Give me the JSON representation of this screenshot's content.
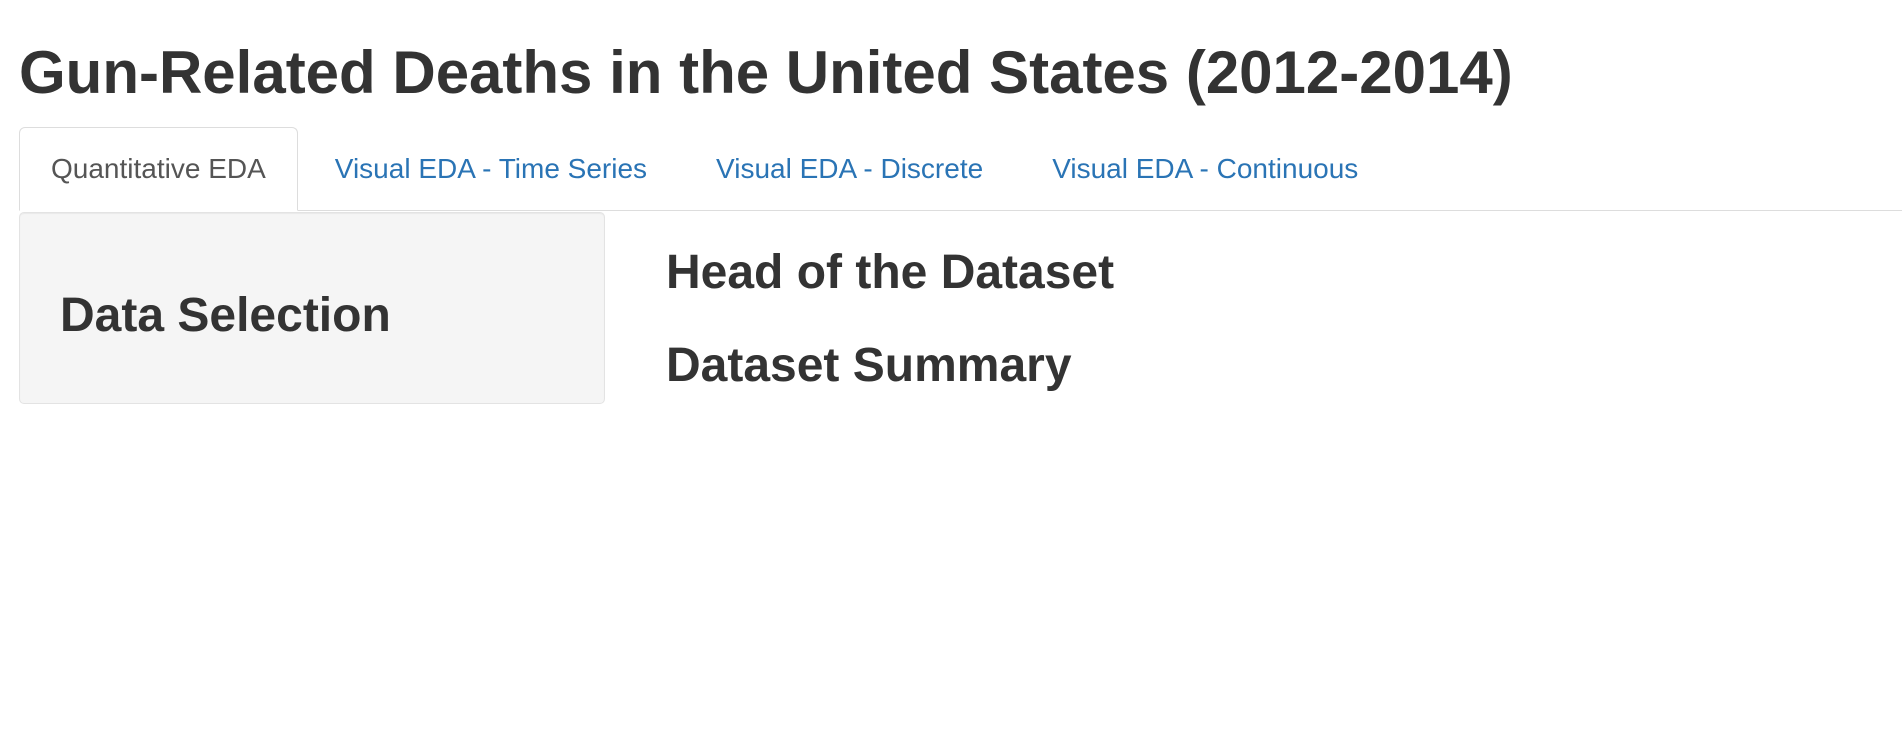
{
  "header": {
    "title": "Gun-Related Deaths in the United States (2012-2014)"
  },
  "tabs": [
    {
      "label": "Quantitative EDA",
      "active": true
    },
    {
      "label": "Visual EDA - Time Series",
      "active": false
    },
    {
      "label": "Visual EDA - Discrete",
      "active": false
    },
    {
      "label": "Visual EDA - Continuous",
      "active": false
    }
  ],
  "sidebar": {
    "heading": "Data Selection"
  },
  "main": {
    "head_heading": "Head of the Dataset",
    "summary_heading": "Dataset Summary"
  },
  "colors": {
    "link": "#2a74b5",
    "text": "#333333",
    "active_tab_text": "#555555",
    "panel_bg": "#f5f5f5"
  }
}
